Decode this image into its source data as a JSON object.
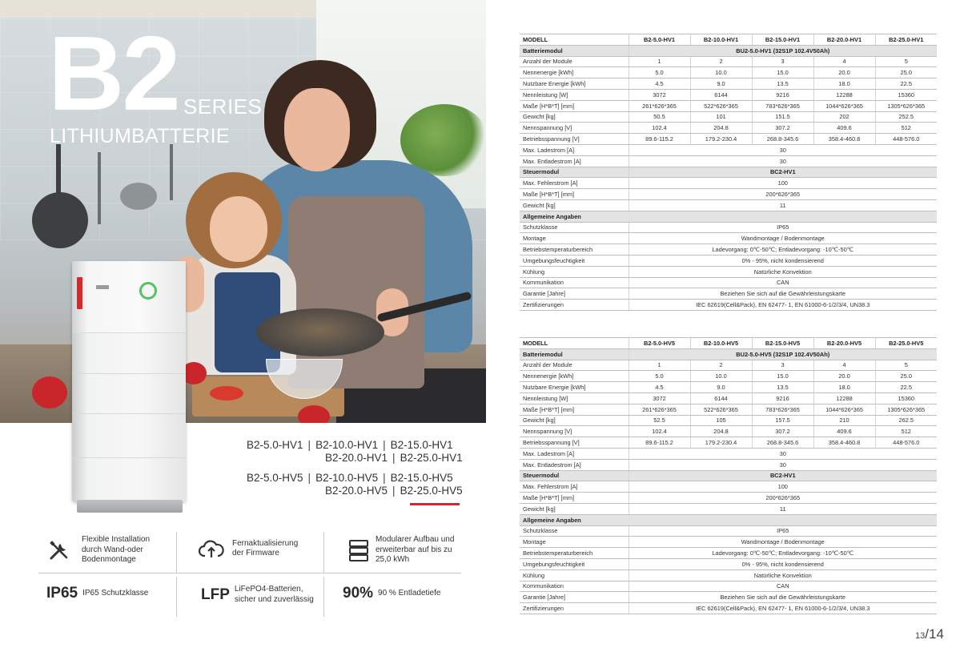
{
  "brand": {
    "title": "B2",
    "series": "SERIES",
    "subtitle": "LITHIUMBATTERIE"
  },
  "models_list": {
    "row1": [
      "B2-5.0-HV1",
      "B2-10.0-HV1",
      "B2-15.0-HV1"
    ],
    "row2": [
      "B2-20.0-HV1",
      "B2-25.0-HV1"
    ],
    "row3": [
      "B2-5.0-HV5",
      "B2-10.0-HV5",
      "B2-15.0-HV5"
    ],
    "row4": [
      "B2-20.0-HV5",
      "B2-25.0-HV5"
    ],
    "separator": "|"
  },
  "features": [
    {
      "icon": "tools-icon",
      "text": "Flexible Installation durch Wand-oder Bodenmontage"
    },
    {
      "icon": "cloud-upload-icon",
      "text": "Fernaktualisierung der Firmware"
    },
    {
      "icon": "stack-icon",
      "text": "Modularer Aufbau und erweiterbar auf bis zu 25,0 kWh"
    },
    {
      "big": "IP65",
      "text": "IP65 Schutzklasse"
    },
    {
      "big": "LFP",
      "text": "LiFePO4-Batterien, sicher und zuverlässig"
    },
    {
      "big": "90%",
      "text": "90 % Entladetiefe"
    }
  ],
  "table_hv1": {
    "header": [
      "MODELL",
      "B2-5.0-HV1",
      "B2-10.0-HV1",
      "B2-15.0-HV1",
      "B2-20.0-HV1",
      "B2-25.0-HV1"
    ],
    "battery_section": {
      "label": "Batteriemodul",
      "value": "BU2-5.0-HV1 (32S1P  102.4V50Ah)"
    },
    "battery_rows": [
      {
        "label": "Anzahl der Module",
        "values": [
          "1",
          "2",
          "3",
          "4",
          "5"
        ]
      },
      {
        "label": "Nennenergie [kWh]",
        "values": [
          "5.0",
          "10.0",
          "15.0",
          "20.0",
          "25.0"
        ]
      },
      {
        "label": "Nutzbare Energie [kWh]",
        "values": [
          "4.5",
          "9.0",
          "13.5",
          "18.0",
          "22.5"
        ]
      },
      {
        "label": "Nennleistung [W]",
        "values": [
          "3072",
          "6144",
          "9216",
          "12288",
          "15360"
        ]
      },
      {
        "label": "Maße [H*B*T] [mm]",
        "values": [
          "261*626*365",
          "522*626*365",
          "783*626*365",
          "1044*626*365",
          "1305*626*365"
        ]
      },
      {
        "label": "Gewicht [kg]",
        "values": [
          "50.5",
          "101",
          "151.5",
          "202",
          "252.5"
        ]
      },
      {
        "label": "Nennspannung [V]",
        "values": [
          "102.4",
          "204.8",
          "307.2",
          "409.6",
          "512"
        ]
      },
      {
        "label": "Betriebsspannung [V]",
        "values": [
          "89.6-115.2",
          "179.2-230.4",
          "268.8-345.6",
          "358.4-460.8",
          "448-576.0"
        ]
      }
    ],
    "battery_span_rows": [
      {
        "label": "Max. Ladestrom [A]",
        "value": "30"
      },
      {
        "label": "Max. Entladestrom [A]",
        "value": "30"
      }
    ],
    "control_section": {
      "label": "Steuermodul",
      "value": "BC2-HV1"
    },
    "control_rows": [
      {
        "label": "Max. Fehlerstrom [A]",
        "value": "100"
      },
      {
        "label": "Maße [H*B*T] [mm]",
        "value": "200*626*365"
      },
      {
        "label": "Gewicht [kg]",
        "value": "11"
      }
    ],
    "general_section": {
      "label": "Allgemeine Angaben"
    },
    "general_rows": [
      {
        "label": "Schutzklasse",
        "value": "IP65"
      },
      {
        "label": "Montage",
        "value": "Wandmontage / Bodenmontage"
      },
      {
        "label": "Betriebstemperaturbereich",
        "value": "Ladevorgang: 0℃-50℃; Entladevorgang: -10℃-50℃"
      },
      {
        "label": "Umgebungsfeuchtigkeit",
        "value": "0% - 95%, nicht kondensierend"
      },
      {
        "label": "Kühlung",
        "value": "Natürliche Konvektion"
      },
      {
        "label": "Kommunikation",
        "value": "CAN"
      },
      {
        "label": "Garantie [Jahre]",
        "value": "Beziehen Sie sich auf die Gewährleistungskarte"
      },
      {
        "label": "Zertifizierungen",
        "value": "IEC 62619(Cell&Pack), EN 62477- 1, EN 61000-6-1/2/3/4, UN38.3"
      }
    ]
  },
  "table_hv5": {
    "header": [
      "MODELL",
      "B2-5.0-HV5",
      "B2-10.0-HV5",
      "B2-15.0-HV5",
      "B2-20.0-HV5",
      "B2-25.0-HV5"
    ],
    "battery_section": {
      "label": "Batteriemodul",
      "value": "BU2-5.0-HV5 (32S1P  102.4V50Ah)"
    },
    "battery_rows": [
      {
        "label": "Anzahl der Module",
        "values": [
          "1",
          "2",
          "3",
          "4",
          "5"
        ]
      },
      {
        "label": "Nennenergie [kWh]",
        "values": [
          "5.0",
          "10.0",
          "15.0",
          "20.0",
          "25.0"
        ]
      },
      {
        "label": "Nutzbare Energie [kWh]",
        "values": [
          "4.5",
          "9.0",
          "13.5",
          "18.0",
          "22.5"
        ]
      },
      {
        "label": "Nennleistung [W]",
        "values": [
          "3072",
          "6144",
          "9216",
          "12288",
          "15360"
        ]
      },
      {
        "label": "Maße [H*B*T] [mm]",
        "values": [
          "261*626*365",
          "522*626*365",
          "783*626*365",
          "1044*626*365",
          "1305*626*365"
        ]
      },
      {
        "label": "Gewicht [kg]",
        "values": [
          "52.5",
          "105",
          "157.5",
          "210",
          "262.5"
        ]
      },
      {
        "label": "Nennspannung [V]",
        "values": [
          "102.4",
          "204.8",
          "307.2",
          "409.6",
          "512"
        ]
      },
      {
        "label": "Betriebsspannung [V]",
        "values": [
          "89.6-115.2",
          "179.2-230.4",
          "268.8-345.6",
          "358.4-460.8",
          "448-576.0"
        ]
      }
    ],
    "battery_span_rows": [
      {
        "label": "Max. Ladestrom [A]",
        "value": "30"
      },
      {
        "label": "Max. Entladestrom [A]",
        "value": "30"
      }
    ],
    "control_section": {
      "label": "Steuermodul",
      "value": "BC2-HV1"
    },
    "control_rows": [
      {
        "label": "Max. Fehlerstrom [A]",
        "value": "100"
      },
      {
        "label": "Maße [H*B*T] [mm]",
        "value": "200*626*365"
      },
      {
        "label": "Gewicht [kg]",
        "value": "11"
      }
    ],
    "general_section": {
      "label": "Allgemeine Angaben"
    },
    "general_rows": [
      {
        "label": "Schutzklasse",
        "value": "IP65"
      },
      {
        "label": "Montage",
        "value": "Wandmontage / Bodenmontage"
      },
      {
        "label": "Betriebstemperaturbereich",
        "value": "Ladevorgang: 0℃-50℃; Entladevorgang: -10℃-50℃"
      },
      {
        "label": "Umgebungsfeuchtigkeit",
        "value": "0% - 95%, nicht kondensierend"
      },
      {
        "label": "Kühlung",
        "value": "Natürliche Konvektion"
      },
      {
        "label": "Kommunikation",
        "value": "CAN"
      },
      {
        "label": "Garantie [Jahre]",
        "value": "Beziehen Sie sich auf die Gewährleistungskarte"
      },
      {
        "label": "Zertifizierungen",
        "value": "IEC 62619(Cell&Pack), EN 62477- 1, EN 61000-6-1/2/3/4, UN38.3"
      }
    ]
  },
  "page_number": {
    "current": "13",
    "separator": "/",
    "total": "14"
  },
  "colors": {
    "accent": "#d7262b",
    "section_bg": "#e3e3e3",
    "ring_green": "#55c266"
  }
}
